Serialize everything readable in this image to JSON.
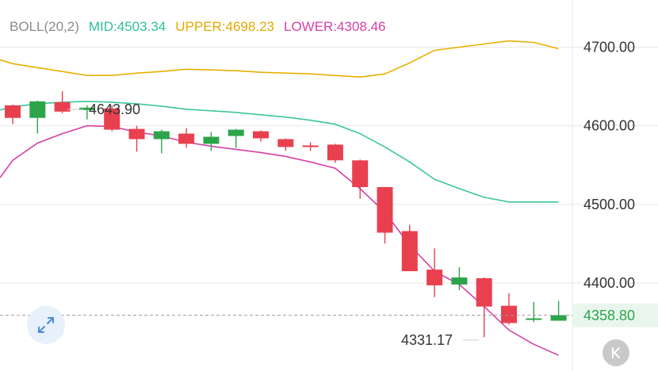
{
  "legend": {
    "indicator": "BOLL(20,2)",
    "mid": "MID:4503.34",
    "upper": "UPPER:4698.23",
    "lower": "LOWER:4308.46"
  },
  "colors": {
    "up": "#2ca44a",
    "down": "#e8404f",
    "mid": "#3cc6a0",
    "upper": "#e8b000",
    "lower": "#d63fa8",
    "grid": "#e8e8e8",
    "indicator": "#8a8a8a"
  },
  "annotations": {
    "high_label": "4643.90",
    "low_label": "4331.17"
  },
  "current_price": {
    "label": "4358.80",
    "value": 4358.8
  },
  "icons": {
    "expand": "expand-arrows-icon",
    "back": "skip-back-icon"
  },
  "chart_data": {
    "type": "candlestick",
    "y_ticks": [
      {
        "value": 4700,
        "label": "4700.00"
      },
      {
        "value": 4600,
        "label": "4600.00"
      },
      {
        "value": 4500,
        "label": "4500.00"
      },
      {
        "value": 4400,
        "label": "4400.00"
      }
    ],
    "ylim": [
      4288,
      4760
    ],
    "candles": [
      {
        "open": 4626,
        "high": 4627,
        "low": 4602,
        "close": 4610
      },
      {
        "open": 4610,
        "high": 4632,
        "low": 4590,
        "close": 4631
      },
      {
        "open": 4630,
        "high": 4644,
        "low": 4616,
        "close": 4618
      },
      {
        "open": 4620,
        "high": 4626,
        "low": 4608,
        "close": 4623
      },
      {
        "open": 4622,
        "high": 4626,
        "low": 4593,
        "close": 4595
      },
      {
        "open": 4596,
        "high": 4600,
        "low": 4567,
        "close": 4583
      },
      {
        "open": 4583,
        "high": 4595,
        "low": 4565,
        "close": 4593
      },
      {
        "open": 4590,
        "high": 4597,
        "low": 4572,
        "close": 4577
      },
      {
        "open": 4577,
        "high": 4592,
        "low": 4568,
        "close": 4586
      },
      {
        "open": 4587,
        "high": 4596,
        "low": 4572,
        "close": 4595
      },
      {
        "open": 4593,
        "high": 4594,
        "low": 4580,
        "close": 4584
      },
      {
        "open": 4583,
        "high": 4584,
        "low": 4568,
        "close": 4573
      },
      {
        "open": 4575,
        "high": 4579,
        "low": 4568,
        "close": 4573
      },
      {
        "open": 4576,
        "high": 4577,
        "low": 4553,
        "close": 4556
      },
      {
        "open": 4556,
        "high": 4557,
        "low": 4507,
        "close": 4522
      },
      {
        "open": 4522,
        "high": 4522,
        "low": 4450,
        "close": 4464
      },
      {
        "open": 4466,
        "high": 4474,
        "low": 4415,
        "close": 4415
      },
      {
        "open": 4417,
        "high": 4444,
        "low": 4382,
        "close": 4397
      },
      {
        "open": 4398,
        "high": 4420,
        "low": 4391,
        "close": 4407
      },
      {
        "open": 4406,
        "high": 4407,
        "low": 4331,
        "close": 4370
      },
      {
        "open": 4371,
        "high": 4387,
        "low": 4347,
        "close": 4349
      },
      {
        "open": 4355,
        "high": 4376,
        "low": 4350,
        "close": 4355
      },
      {
        "open": 4352,
        "high": 4377,
        "low": 4352,
        "close": 4359
      }
    ],
    "upper": [
      4679,
      4674,
      4669,
      4664,
      4664,
      4667,
      4669,
      4672,
      4671,
      4670,
      4668,
      4667,
      4666,
      4664,
      4662,
      4666,
      4680,
      4696,
      4700,
      4704,
      4708,
      4706,
      4698
    ],
    "mid": [
      4624,
      4628,
      4630,
      4631,
      4630,
      4628,
      4625,
      4621,
      4619,
      4617,
      4614,
      4611,
      4607,
      4602,
      4590,
      4573,
      4554,
      4532,
      4520,
      4509,
      4503,
      4503,
      4503
    ],
    "lower": [
      4556,
      4578,
      4590,
      4600,
      4599,
      4592,
      4587,
      4579,
      4574,
      4570,
      4566,
      4561,
      4554,
      4546,
      4520,
      4490,
      4448,
      4415,
      4398,
      4370,
      4340,
      4322,
      4308
    ]
  }
}
